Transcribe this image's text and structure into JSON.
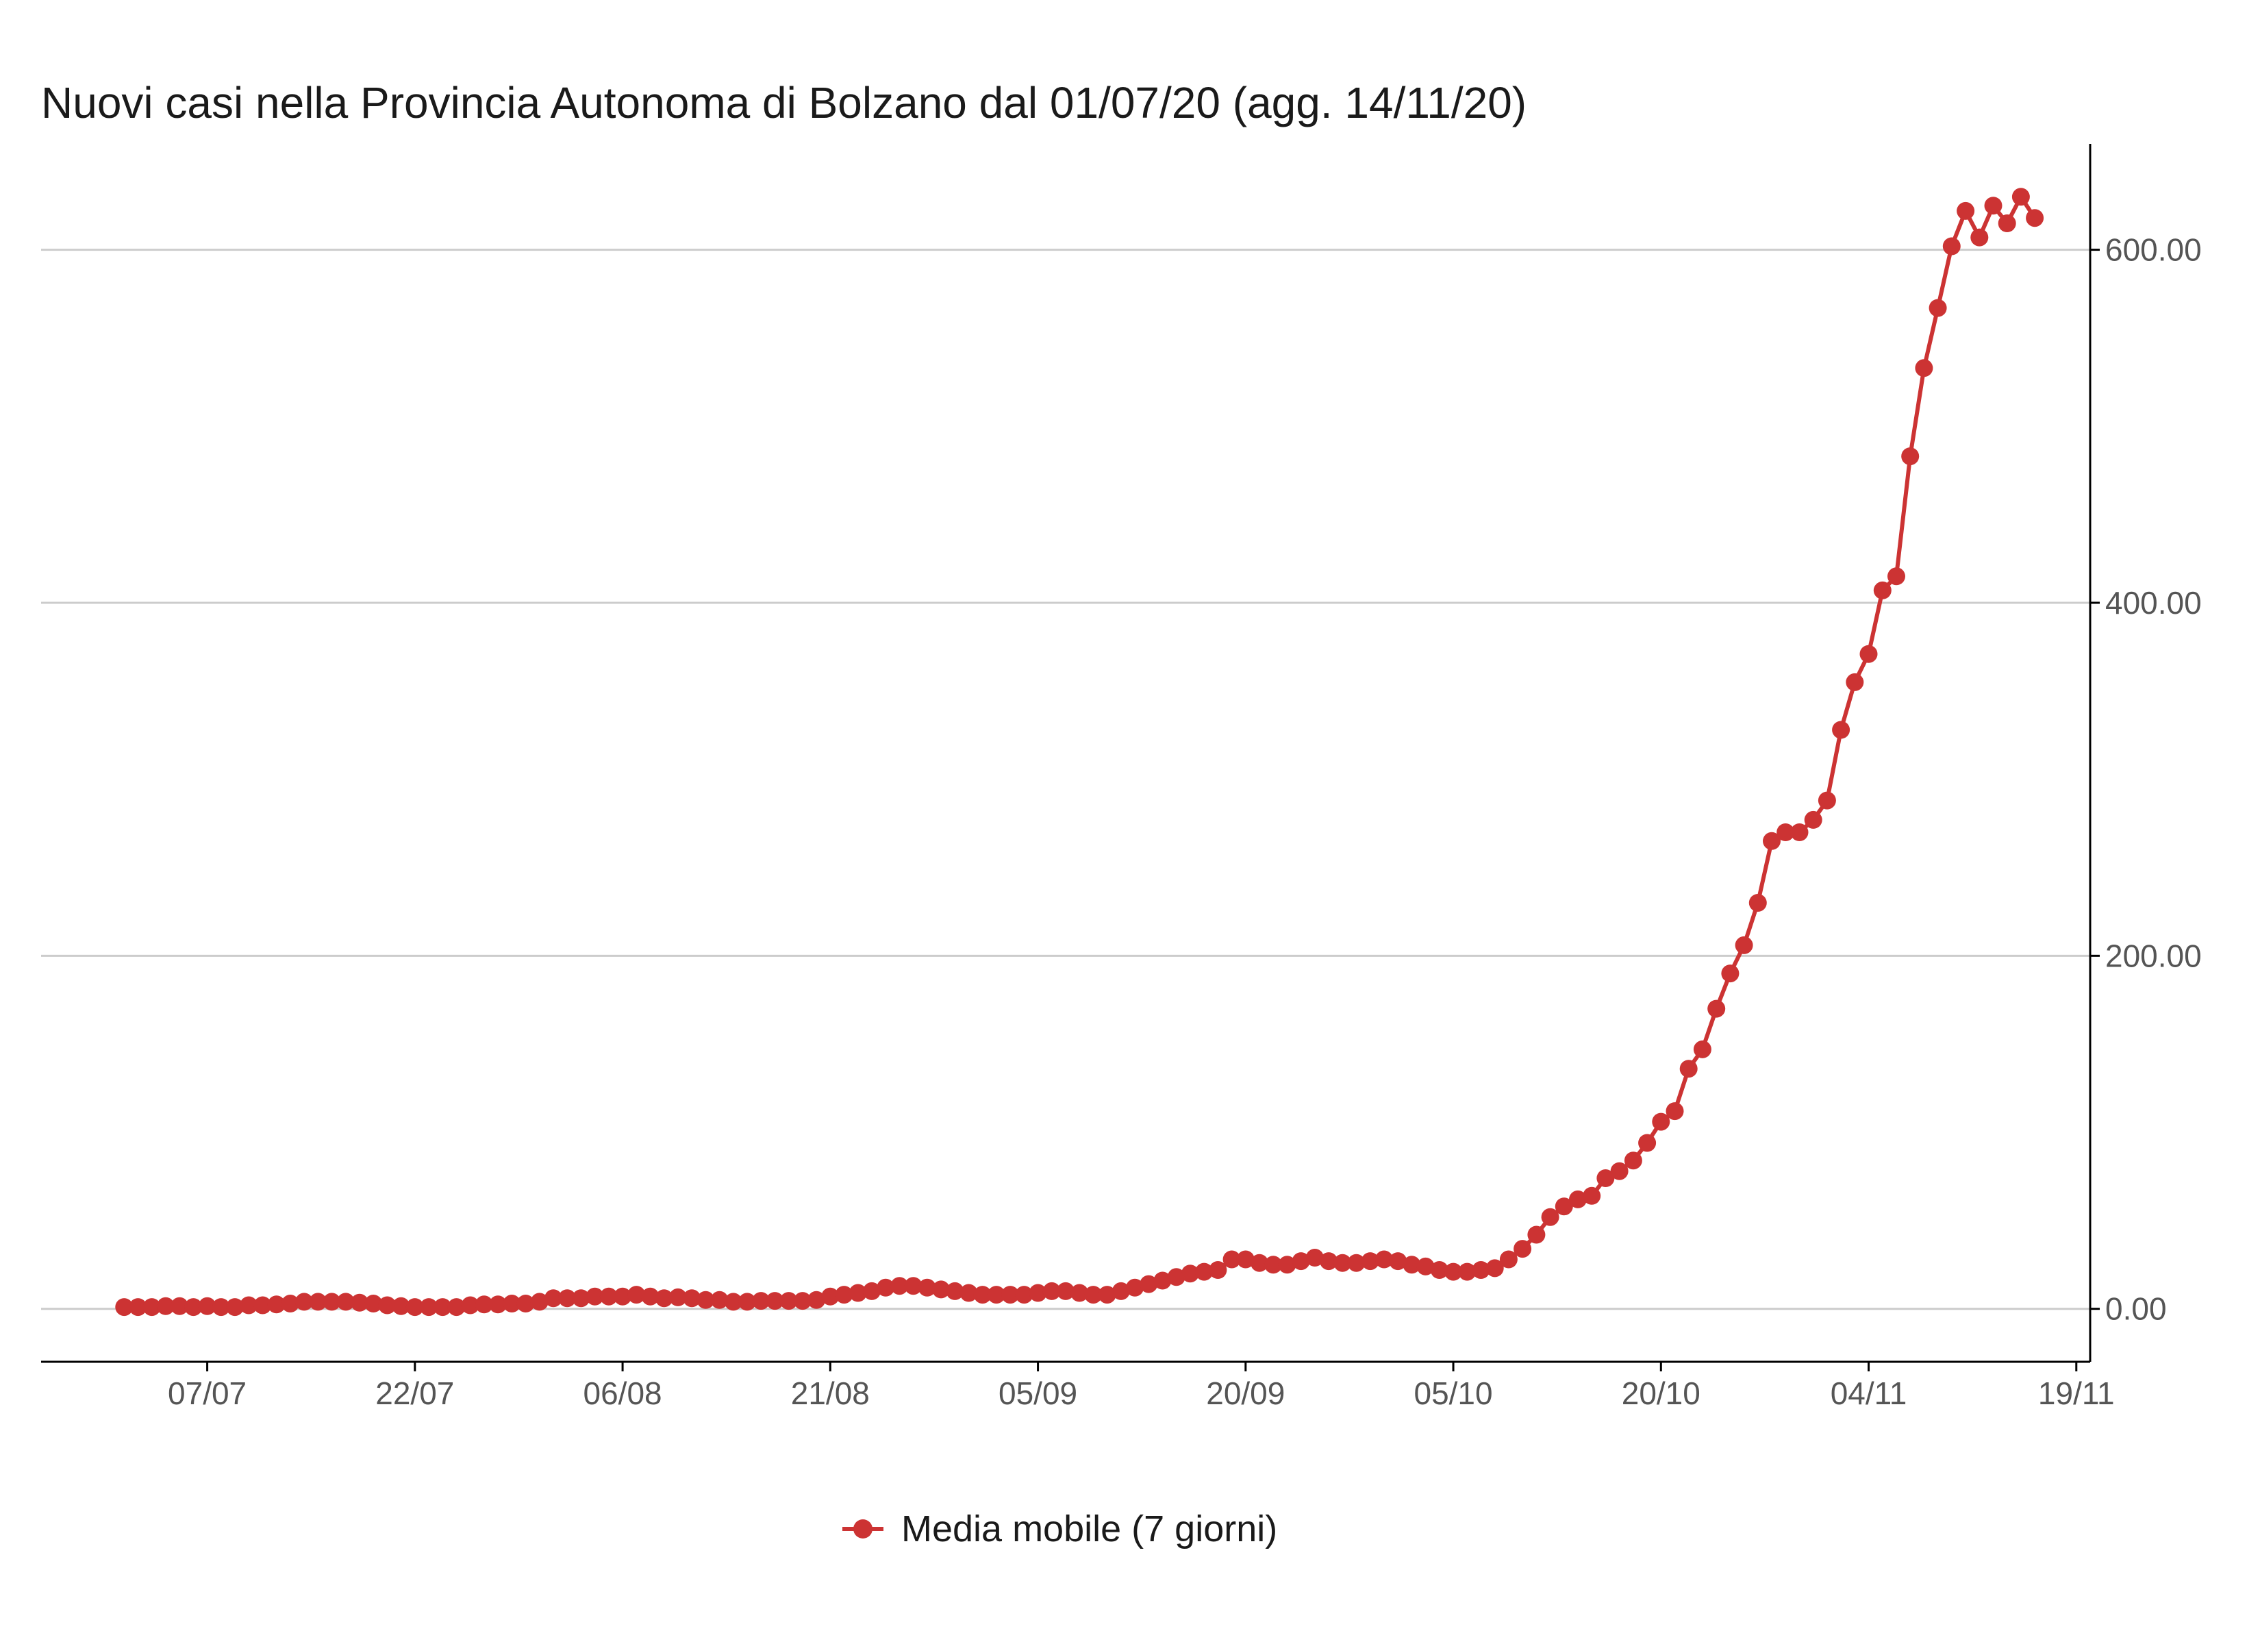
{
  "chart_data": {
    "type": "line",
    "title": "Nuovi casi nella Provincia Autonoma di Bolzano dal 01/07/20 (agg. 14/11/20)",
    "xlabel": "",
    "ylabel": "",
    "grid": "horizontal",
    "y_axis_position": "right",
    "legend_position": "bottom",
    "x_axis": {
      "start_date": "2020-07-01",
      "end_date": "2020-11-14",
      "range": [
        "2020-06-25",
        "2020-11-20"
      ],
      "ticks": [
        {
          "date": "2020-07-07",
          "label": "07/07"
        },
        {
          "date": "2020-07-22",
          "label": "22/07"
        },
        {
          "date": "2020-08-06",
          "label": "06/08"
        },
        {
          "date": "2020-08-21",
          "label": "21/08"
        },
        {
          "date": "2020-09-05",
          "label": "05/09"
        },
        {
          "date": "2020-09-20",
          "label": "20/09"
        },
        {
          "date": "2020-10-05",
          "label": "05/10"
        },
        {
          "date": "2020-10-20",
          "label": "20/10"
        },
        {
          "date": "2020-11-04",
          "label": "04/11"
        },
        {
          "date": "2020-11-19",
          "label": "19/11"
        }
      ]
    },
    "y_axis": {
      "range": [
        -30,
        660
      ],
      "ticks": [
        {
          "value": 0,
          "label": "0.00"
        },
        {
          "value": 200,
          "label": "200.00"
        },
        {
          "value": 400,
          "label": "400.00"
        },
        {
          "value": 600,
          "label": "600.00"
        }
      ]
    },
    "series": [
      {
        "name": "Media mobile (7 giorni)",
        "color": "#cc3333",
        "values": [
          1,
          1,
          1,
          1.5,
          1.5,
          1,
          1.5,
          1,
          1,
          2,
          2,
          2.5,
          3,
          4,
          4,
          4,
          4,
          3.5,
          3,
          2,
          1.5,
          1,
          1,
          1,
          1,
          2,
          2.5,
          2.5,
          3,
          3,
          4,
          6,
          6,
          6,
          7,
          7,
          7,
          8,
          7,
          6,
          6.5,
          6,
          5,
          5,
          4,
          4,
          4.5,
          4.5,
          4.5,
          4.5,
          5,
          7,
          8,
          9,
          10,
          12,
          13,
          13,
          12,
          11,
          10,
          9,
          8,
          8,
          8,
          8,
          9,
          10,
          10,
          9,
          8,
          8,
          10,
          12,
          14,
          16,
          18,
          20,
          21,
          22,
          28,
          28,
          26,
          25,
          25,
          27,
          29,
          27,
          26,
          26,
          27,
          28,
          27,
          25,
          24,
          22,
          21,
          21,
          22,
          23,
          28,
          34,
          42,
          52,
          58,
          62,
          64,
          74,
          78,
          84,
          94,
          106,
          112,
          136,
          147,
          170,
          190,
          206,
          230,
          265,
          270,
          270,
          277,
          288,
          328,
          355,
          371,
          407,
          415,
          483,
          533,
          567,
          602,
          622,
          607,
          625,
          615,
          630,
          618
        ]
      }
    ]
  },
  "legend": {
    "label": "Media mobile (7 giorni)",
    "marker": "line-with-dot-icon"
  }
}
